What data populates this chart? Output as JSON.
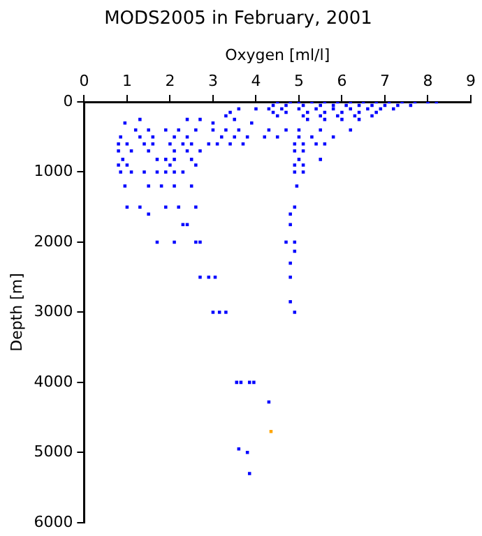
{
  "chart_data": {
    "type": "scatter",
    "title": "MODS2005 in February, 2001",
    "xlabel": "Oxygen [ml/l]",
    "ylabel": "Depth [m]",
    "xlim": [
      0,
      9
    ],
    "xticks": [
      0,
      1,
      2,
      3,
      4,
      5,
      6,
      7,
      8,
      9
    ],
    "ylim": [
      6000,
      0
    ],
    "yticks": [
      0,
      1000,
      2000,
      3000,
      4000,
      5000,
      6000
    ],
    "grid": false,
    "legend": false,
    "marker": "square",
    "series": [
      {
        "color": "#0000ff",
        "x": [
          4.5,
          4.8,
          5.0,
          5.3,
          5.6,
          5.9,
          6.2,
          6.5,
          6.8,
          7.1,
          7.4,
          7.7,
          8.0,
          8.2,
          4.4,
          4.7,
          5.1,
          5.5,
          5.8,
          6.1,
          6.4,
          6.7,
          7.0,
          7.3,
          7.6,
          4.3,
          4.6,
          5.0,
          5.4,
          5.8,
          6.2,
          6.6,
          6.9,
          7.2,
          3.6,
          4.0,
          4.4,
          4.7,
          5.2,
          5.6,
          6.0,
          6.4,
          6.8,
          3.4,
          4.5,
          5.1,
          5.5,
          5.9,
          6.3,
          6.7,
          3.3,
          5.2,
          5.6,
          6.0,
          6.4,
          3.5,
          2.4,
          2.7,
          1.3,
          0.95,
          3.0,
          3.9,
          1.2,
          1.5,
          1.9,
          2.2,
          2.6,
          3.0,
          3.3,
          3.6,
          4.3,
          4.7,
          5.0,
          5.5,
          6.2,
          0.85,
          1.3,
          1.6,
          2.1,
          2.4,
          3.2,
          3.5,
          3.8,
          4.2,
          4.5,
          5.0,
          5.3,
          5.8,
          0.8,
          1.0,
          1.4,
          1.6,
          2.0,
          2.3,
          2.5,
          2.9,
          3.1,
          3.4,
          3.7,
          4.9,
          5.1,
          5.4,
          5.6,
          0.8,
          1.1,
          1.5,
          2.1,
          2.4,
          2.7,
          4.9,
          5.1,
          0.9,
          1.7,
          1.9,
          2.1,
          2.5,
          5.0,
          5.5,
          0.8,
          1.0,
          2.0,
          2.6,
          4.9,
          5.1,
          0.85,
          1.1,
          1.4,
          1.7,
          1.9,
          2.1,
          2.3,
          4.9,
          5.1,
          0.95,
          1.5,
          1.8,
          2.1,
          2.5,
          4.95,
          1.0,
          1.3,
          1.9,
          2.2,
          2.6,
          4.9,
          1.5,
          4.8,
          2.3,
          2.4,
          4.8,
          1.7,
          2.1,
          2.6,
          2.7,
          4.7,
          4.9,
          4.9,
          4.8,
          2.7,
          2.9,
          3.05,
          4.8,
          4.8,
          3.0,
          3.15,
          3.3,
          4.9,
          3.55,
          3.65,
          3.85,
          3.95,
          4.3,
          3.6,
          3.8,
          3.85
        ],
        "values": [
          0,
          0,
          0,
          0,
          0,
          0,
          0,
          0,
          0,
          0,
          0,
          0,
          0,
          0,
          50,
          50,
          50,
          50,
          50,
          50,
          50,
          50,
          50,
          50,
          50,
          100,
          100,
          100,
          100,
          100,
          100,
          100,
          100,
          100,
          100,
          100,
          150,
          150,
          150,
          150,
          150,
          150,
          150,
          150,
          200,
          200,
          200,
          200,
          200,
          200,
          200,
          250,
          250,
          250,
          250,
          250,
          250,
          250,
          250,
          300,
          300,
          300,
          400,
          400,
          400,
          400,
          400,
          400,
          400,
          400,
          400,
          400,
          400,
          400,
          400,
          500,
          500,
          500,
          500,
          500,
          500,
          500,
          500,
          500,
          500,
          500,
          500,
          500,
          600,
          600,
          600,
          600,
          600,
          600,
          600,
          600,
          600,
          600,
          600,
          600,
          600,
          600,
          600,
          700,
          700,
          700,
          700,
          700,
          700,
          700,
          700,
          820,
          820,
          820,
          820,
          820,
          820,
          820,
          900,
          900,
          900,
          900,
          900,
          900,
          1000,
          1000,
          1000,
          1000,
          1000,
          1000,
          1000,
          1000,
          1000,
          1200,
          1200,
          1200,
          1200,
          1200,
          1200,
          1500,
          1500,
          1500,
          1500,
          1500,
          1500,
          1600,
          1600,
          1750,
          1750,
          1750,
          2000,
          2000,
          2000,
          2000,
          2000,
          2000,
          2130,
          2300,
          2500,
          2500,
          2500,
          2500,
          2850,
          3000,
          3000,
          3000,
          3000,
          4000,
          4000,
          4000,
          4000,
          4280,
          4950,
          5000,
          5300
        ]
      },
      {
        "color": "#ffa500",
        "x": [
          4.35
        ],
        "values": [
          4700
        ]
      }
    ]
  }
}
